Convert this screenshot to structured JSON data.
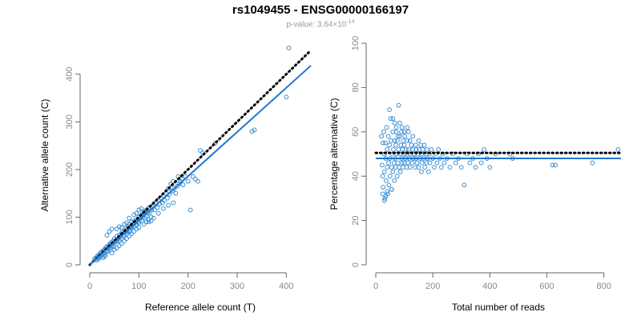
{
  "title": "rs1049455 - ENSG00000166197",
  "subtitle": {
    "prefix": "p-value: 3.64×10",
    "exponent": "-14"
  },
  "colors": {
    "points": "#3a8fd3",
    "fit_line": "#1f78d1",
    "reference_line": "#000000",
    "axis": "#666666",
    "tick_label": "#888888"
  },
  "chart_data": [
    {
      "type": "scatter",
      "title": "",
      "xlabel": "Reference allele count (T)",
      "ylabel": "Alternative allele count (C)",
      "xlim": [
        0,
        450
      ],
      "ylim": [
        0,
        460
      ],
      "xticks": [
        0,
        100,
        200,
        300,
        400
      ],
      "yticks": [
        0,
        100,
        200,
        300,
        400
      ],
      "grid": false,
      "points": [
        [
          10,
          12
        ],
        [
          12,
          14
        ],
        [
          14,
          10
        ],
        [
          15,
          18
        ],
        [
          16,
          15
        ],
        [
          18,
          20
        ],
        [
          18,
          12
        ],
        [
          20,
          22
        ],
        [
          20,
          16
        ],
        [
          22,
          25
        ],
        [
          22,
          18
        ],
        [
          24,
          20
        ],
        [
          25,
          28
        ],
        [
          26,
          22
        ],
        [
          27,
          15
        ],
        [
          28,
          30
        ],
        [
          28,
          26
        ],
        [
          30,
          32
        ],
        [
          30,
          24
        ],
        [
          32,
          35
        ],
        [
          32,
          20
        ],
        [
          34,
          30
        ],
        [
          35,
          38
        ],
        [
          36,
          28
        ],
        [
          38,
          40
        ],
        [
          38,
          34
        ],
        [
          40,
          42
        ],
        [
          40,
          30
        ],
        [
          42,
          45
        ],
        [
          42,
          36
        ],
        [
          44,
          40
        ],
        [
          45,
          48
        ],
        [
          46,
          42
        ],
        [
          48,
          50
        ],
        [
          48,
          38
        ],
        [
          50,
          55
        ],
        [
          50,
          45
        ],
        [
          52,
          48
        ],
        [
          54,
          52
        ],
        [
          55,
          60
        ],
        [
          56,
          50
        ],
        [
          58,
          55
        ],
        [
          60,
          62
        ],
        [
          60,
          50
        ],
        [
          62,
          58
        ],
        [
          64,
          65
        ],
        [
          65,
          55
        ],
        [
          66,
          70
        ],
        [
          68,
          62
        ],
        [
          70,
          72
        ],
        [
          70,
          60
        ],
        [
          72,
          68
        ],
        [
          74,
          75
        ],
        [
          75,
          65
        ],
        [
          76,
          70
        ],
        [
          78,
          80
        ],
        [
          80,
          72
        ],
        [
          80,
          85
        ],
        [
          82,
          70
        ],
        [
          84,
          78
        ],
        [
          85,
          90
        ],
        [
          86,
          80
        ],
        [
          88,
          85
        ],
        [
          90,
          92
        ],
        [
          90,
          80
        ],
        [
          92,
          88
        ],
        [
          95,
          95
        ],
        [
          95,
          85
        ],
        [
          98,
          90
        ],
        [
          100,
          100
        ],
        [
          100,
          88
        ],
        [
          102,
          95
        ],
        [
          105,
          105
        ],
        [
          106,
          92
        ],
        [
          108,
          100
        ],
        [
          110,
          110
        ],
        [
          112,
          98
        ],
        [
          115,
          115
        ],
        [
          115,
          102
        ],
        [
          118,
          108
        ],
        [
          120,
          120
        ],
        [
          122,
          110
        ],
        [
          125,
          100
        ],
        [
          126,
          115
        ],
        [
          128,
          122
        ],
        [
          130,
          125
        ],
        [
          132,
          115
        ],
        [
          135,
          130
        ],
        [
          138,
          120
        ],
        [
          140,
          135
        ],
        [
          142,
          128
        ],
        [
          145,
          140
        ],
        [
          148,
          130
        ],
        [
          150,
          145
        ],
        [
          152,
          135
        ],
        [
          155,
          150
        ],
        [
          158,
          140
        ],
        [
          160,
          160
        ],
        [
          162,
          148
        ],
        [
          165,
          170
        ],
        [
          168,
          155
        ],
        [
          170,
          175
        ],
        [
          172,
          160
        ],
        [
          175,
          150
        ],
        [
          178,
          165
        ],
        [
          180,
          185
        ],
        [
          182,
          170
        ],
        [
          185,
          175
        ],
        [
          188,
          180
        ],
        [
          190,
          168
        ],
        [
          195,
          185
        ],
        [
          200,
          175
        ],
        [
          205,
          115
        ],
        [
          210,
          185
        ],
        [
          215,
          180
        ],
        [
          220,
          175
        ],
        [
          225,
          240
        ],
        [
          230,
          235
        ],
        [
          255,
          255
        ],
        [
          330,
          280
        ],
        [
          335,
          283
        ],
        [
          400,
          352
        ],
        [
          405,
          455
        ],
        [
          35,
          62
        ],
        [
          40,
          70
        ],
        [
          45,
          75
        ],
        [
          55,
          75
        ],
        [
          60,
          80
        ],
        [
          65,
          78
        ],
        [
          70,
          85
        ],
        [
          75,
          88
        ],
        [
          80,
          98
        ],
        [
          90,
          105
        ],
        [
          95,
          108
        ],
        [
          100,
          115
        ],
        [
          105,
          118
        ],
        [
          110,
          112
        ],
        [
          115,
          90
        ],
        [
          120,
          95
        ],
        [
          125,
          92
        ],
        [
          130,
          98
        ],
        [
          140,
          108
        ],
        [
          150,
          118
        ],
        [
          160,
          125
        ],
        [
          170,
          130
        ],
        [
          30,
          18
        ],
        [
          45,
          25
        ],
        [
          50,
          32
        ],
        [
          55,
          35
        ],
        [
          60,
          40
        ],
        [
          65,
          45
        ],
        [
          70,
          50
        ],
        [
          75,
          55
        ],
        [
          80,
          60
        ],
        [
          85,
          65
        ],
        [
          90,
          70
        ],
        [
          95,
          75
        ],
        [
          100,
          78
        ],
        [
          110,
          85
        ],
        [
          120,
          90
        ]
      ],
      "fit_line": [
        [
          0,
          0
        ],
        [
          450,
          418
        ]
      ],
      "reference_line": [
        [
          0,
          0
        ],
        [
          450,
          450
        ]
      ]
    },
    {
      "type": "scatter",
      "title": "",
      "xlabel": "Total number of reads",
      "ylabel": "Percentage alternative (C)",
      "xlim": [
        0,
        860
      ],
      "ylim": [
        0,
        100
      ],
      "xticks": [
        0,
        200,
        400,
        600,
        800
      ],
      "yticks": [
        0,
        20,
        40,
        60,
        80,
        100
      ],
      "grid": false,
      "points": [
        [
          20,
          58
        ],
        [
          22,
          45
        ],
        [
          24,
          40
        ],
        [
          25,
          55
        ],
        [
          26,
          35
        ],
        [
          28,
          60
        ],
        [
          30,
          50
        ],
        [
          30,
          42
        ],
        [
          32,
          30
        ],
        [
          34,
          55
        ],
        [
          35,
          48
        ],
        [
          36,
          38
        ],
        [
          38,
          62
        ],
        [
          40,
          52
        ],
        [
          40,
          44
        ],
        [
          42,
          32
        ],
        [
          44,
          58
        ],
        [
          45,
          46
        ],
        [
          46,
          36
        ],
        [
          48,
          54
        ],
        [
          50,
          48
        ],
        [
          50,
          40
        ],
        [
          52,
          66
        ],
        [
          54,
          56
        ],
        [
          55,
          44
        ],
        [
          56,
          34
        ],
        [
          58,
          50
        ],
        [
          60,
          60
        ],
        [
          60,
          42
        ],
        [
          62,
          52
        ],
        [
          64,
          46
        ],
        [
          65,
          38
        ],
        [
          66,
          56
        ],
        [
          68,
          48
        ],
        [
          70,
          54
        ],
        [
          70,
          44
        ],
        [
          72,
          62
        ],
        [
          74,
          50
        ],
        [
          75,
          40
        ],
        [
          76,
          56
        ],
        [
          78,
          46
        ],
        [
          80,
          52
        ],
        [
          80,
          72
        ],
        [
          82,
          44
        ],
        [
          84,
          58
        ],
        [
          85,
          50
        ],
        [
          86,
          42
        ],
        [
          88,
          54
        ],
        [
          90,
          48
        ],
        [
          90,
          60
        ],
        [
          92,
          46
        ],
        [
          94,
          52
        ],
        [
          95,
          44
        ],
        [
          96,
          56
        ],
        [
          98,
          50
        ],
        [
          100,
          54
        ],
        [
          100,
          46
        ],
        [
          102,
          58
        ],
        [
          104,
          48
        ],
        [
          106,
          52
        ],
        [
          108,
          44
        ],
        [
          110,
          56
        ],
        [
          110,
          50
        ],
        [
          112,
          46
        ],
        [
          115,
          60
        ],
        [
          115,
          52
        ],
        [
          118,
          48
        ],
        [
          120,
          56
        ],
        [
          120,
          44
        ],
        [
          122,
          50
        ],
        [
          125,
          54
        ],
        [
          128,
          46
        ],
        [
          130,
          52
        ],
        [
          130,
          58
        ],
        [
          132,
          48
        ],
        [
          135,
          50
        ],
        [
          138,
          44
        ],
        [
          140,
          54
        ],
        [
          140,
          48
        ],
        [
          142,
          52
        ],
        [
          145,
          46
        ],
        [
          148,
          50
        ],
        [
          150,
          56
        ],
        [
          150,
          44
        ],
        [
          152,
          52
        ],
        [
          155,
          48
        ],
        [
          158,
          54
        ],
        [
          160,
          50
        ],
        [
          160,
          42
        ],
        [
          162,
          46
        ],
        [
          165,
          52
        ],
        [
          168,
          48
        ],
        [
          170,
          54
        ],
        [
          172,
          44
        ],
        [
          175,
          50
        ],
        [
          178,
          46
        ],
        [
          180,
          52
        ],
        [
          182,
          48
        ],
        [
          185,
          42
        ],
        [
          188,
          50
        ],
        [
          190,
          46
        ],
        [
          195,
          52
        ],
        [
          200,
          48
        ],
        [
          205,
          44
        ],
        [
          210,
          50
        ],
        [
          215,
          46
        ],
        [
          220,
          52
        ],
        [
          225,
          48
        ],
        [
          230,
          44
        ],
        [
          235,
          50
        ],
        [
          240,
          46
        ],
        [
          250,
          48
        ],
        [
          260,
          44
        ],
        [
          270,
          50
        ],
        [
          280,
          46
        ],
        [
          290,
          48
        ],
        [
          300,
          44
        ],
        [
          310,
          36
        ],
        [
          320,
          50
        ],
        [
          330,
          46
        ],
        [
          340,
          48
        ],
        [
          350,
          44
        ],
        [
          360,
          50
        ],
        [
          370,
          46
        ],
        [
          380,
          52
        ],
        [
          390,
          48
        ],
        [
          400,
          44
        ],
        [
          420,
          50
        ],
        [
          470,
          50
        ],
        [
          480,
          48
        ],
        [
          620,
          45
        ],
        [
          630,
          45
        ],
        [
          760,
          46
        ],
        [
          850,
          52
        ],
        [
          24,
          32
        ],
        [
          30,
          29
        ],
        [
          35,
          31
        ],
        [
          40,
          33
        ],
        [
          55,
          34
        ],
        [
          48,
          70
        ],
        [
          60,
          66
        ],
        [
          66,
          64
        ],
        [
          72,
          60
        ],
        [
          78,
          58
        ],
        [
          84,
          64
        ],
        [
          92,
          62
        ],
        [
          100,
          60
        ],
        [
          110,
          62
        ]
      ],
      "fit_line": [
        [
          0,
          48
        ],
        [
          860,
          48
        ]
      ],
      "reference_line": [
        [
          0,
          50.5
        ],
        [
          860,
          50.5
        ]
      ]
    }
  ]
}
